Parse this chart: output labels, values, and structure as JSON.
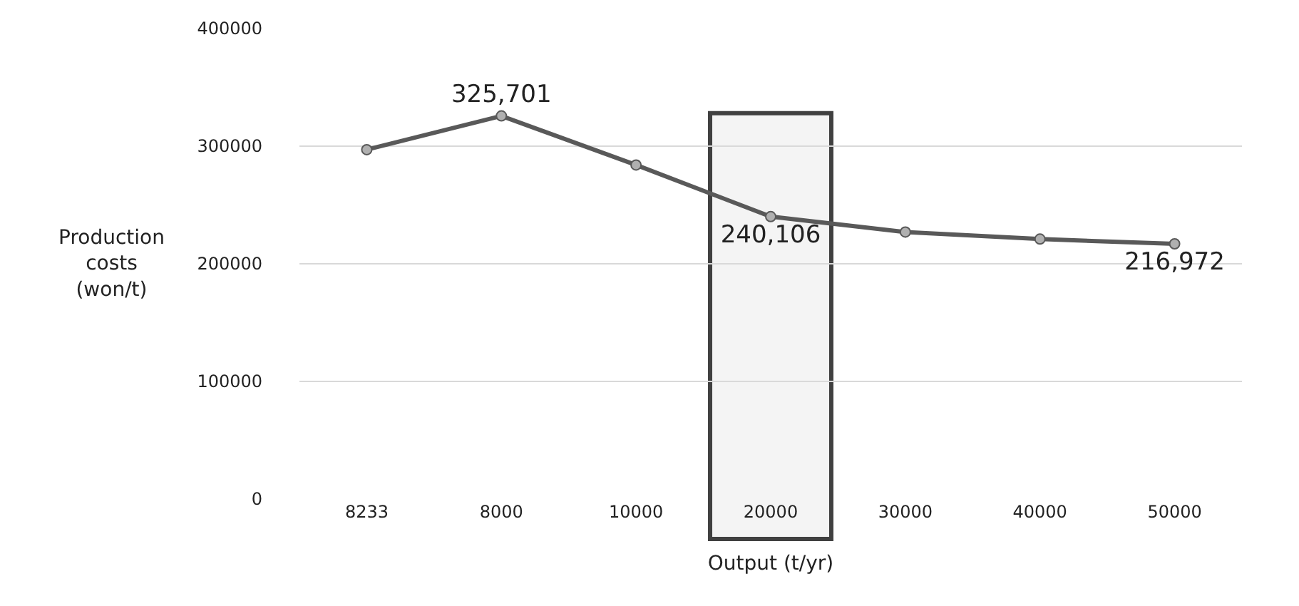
{
  "chart_data": {
    "type": "line",
    "xlabel": "Output (t/yr)",
    "ylabel": "Production\ncosts\n(won/t)",
    "categories": [
      "8233",
      "8000",
      "10000",
      "20000",
      "30000",
      "40000",
      "50000"
    ],
    "series": [
      {
        "color": "#595959",
        "values": [
          297000,
          325701,
          284000,
          240106,
          227000,
          221000,
          216972
        ],
        "value_labels": [
          null,
          "325,701",
          null,
          "240,106",
          null,
          null,
          "216,972"
        ]
      }
    ],
    "ylim": [
      0,
      400000
    ],
    "yticks": [
      0,
      100000,
      200000,
      300000,
      400000
    ],
    "grid": "y",
    "marker": "circle",
    "line_style": "solid",
    "legend": false,
    "bands": [
      {
        "axis": "x",
        "from": "20000",
        "to": "20000",
        "color": "#404040"
      }
    ]
  }
}
